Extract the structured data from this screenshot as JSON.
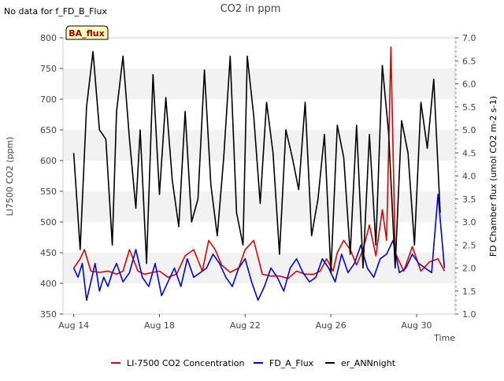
{
  "header": {
    "note": "No data for f_FD_B_Flux"
  },
  "chart_data": {
    "type": "line",
    "title": "CO2 in ppm",
    "xlabel": "Time",
    "ylabel": "LI7500 CO2 (ppm)",
    "y2label": "FD Chamber flux (umol CO2 m-2 s-1)",
    "badge": "BA_flux",
    "xlim_days": [
      13.5,
      31.8
    ],
    "ylim": [
      350,
      800
    ],
    "y2lim": [
      1.0,
      7.0
    ],
    "x_ticks": [
      {
        "day": 14,
        "label": "Aug 14"
      },
      {
        "day": 18,
        "label": "Aug 18"
      },
      {
        "day": 22,
        "label": "Aug 22"
      },
      {
        "day": 26,
        "label": "Aug 26"
      },
      {
        "day": 30,
        "label": "Aug 30"
      }
    ],
    "y_ticks": [
      350,
      400,
      450,
      500,
      550,
      600,
      650,
      700,
      750,
      800
    ],
    "y2_ticks": [
      "1.0",
      "1.5",
      "2.0",
      "2.5",
      "3.0",
      "3.5",
      "4.0",
      "4.5",
      "5.0",
      "5.5",
      "6.0",
      "6.5",
      "7.0"
    ],
    "grid_bands": true,
    "legend_position": "bottom",
    "series": [
      {
        "name": "LI-7500 CO2 Concentration",
        "color": "#dd0000",
        "axis": "left",
        "x": [
          14.0,
          14.3,
          14.5,
          14.8,
          15.2,
          15.6,
          16.0,
          16.3,
          16.6,
          17.0,
          17.3,
          17.7,
          18.0,
          18.4,
          18.8,
          19.2,
          19.6,
          20.0,
          20.3,
          20.6,
          20.9,
          21.3,
          21.7,
          22.0,
          22.4,
          22.8,
          23.2,
          23.6,
          24.0,
          24.4,
          24.8,
          25.2,
          25.5,
          25.8,
          26.1,
          26.3,
          26.6,
          26.9,
          27.2,
          27.5,
          27.8,
          28.1,
          28.4,
          28.6,
          28.8,
          29.0,
          29.4,
          29.8,
          30.2,
          30.6,
          31.0,
          31.3
        ],
        "y": [
          425,
          440,
          455,
          420,
          418,
          420,
          415,
          420,
          455,
          420,
          415,
          418,
          420,
          410,
          415,
          445,
          455,
          420,
          470,
          455,
          430,
          418,
          425,
          455,
          470,
          415,
          412,
          412,
          408,
          420,
          415,
          415,
          420,
          440,
          420,
          450,
          470,
          455,
          430,
          455,
          495,
          445,
          520,
          470,
          785,
          450,
          420,
          460,
          420,
          435,
          440,
          420
        ]
      },
      {
        "name": "FD_A_Flux",
        "color": "#0000dd",
        "axis": "right",
        "x": [
          14.0,
          14.2,
          14.4,
          14.6,
          14.8,
          15.0,
          15.2,
          15.4,
          15.6,
          15.8,
          16.0,
          16.3,
          16.6,
          16.9,
          17.2,
          17.5,
          17.8,
          18.1,
          18.4,
          18.7,
          19.0,
          19.3,
          19.6,
          19.9,
          20.2,
          20.5,
          20.8,
          21.1,
          21.4,
          21.7,
          22.0,
          22.3,
          22.6,
          22.9,
          23.2,
          23.5,
          23.8,
          24.1,
          24.4,
          24.7,
          25.0,
          25.3,
          25.6,
          25.9,
          26.2,
          26.5,
          26.8,
          27.1,
          27.4,
          27.7,
          28.0,
          28.3,
          28.6,
          28.9,
          29.2,
          29.5,
          29.8,
          30.1,
          30.4,
          30.7,
          31.0,
          31.3
        ],
        "y": [
          2.0,
          1.8,
          2.1,
          1.3,
          1.7,
          2.1,
          1.5,
          1.8,
          1.6,
          1.9,
          2.1,
          1.7,
          1.9,
          2.4,
          1.8,
          1.6,
          2.1,
          1.4,
          1.7,
          2.0,
          1.6,
          2.2,
          1.8,
          1.9,
          2.0,
          2.3,
          2.1,
          1.8,
          1.6,
          2.0,
          2.2,
          1.7,
          1.3,
          1.6,
          2.0,
          1.8,
          1.5,
          2.0,
          2.2,
          1.9,
          1.7,
          1.8,
          2.2,
          2.0,
          1.7,
          2.3,
          1.9,
          2.1,
          2.5,
          2.0,
          1.8,
          2.2,
          2.3,
          2.6,
          1.9,
          2.0,
          2.3,
          2.1,
          2.0,
          1.9,
          3.6,
          2.0
        ]
      },
      {
        "name": "er_ANNnight",
        "color": "#000000",
        "axis": "right",
        "x": [
          14.0,
          14.3,
          14.6,
          14.9,
          15.2,
          15.5,
          15.8,
          16.0,
          16.3,
          16.6,
          16.9,
          17.1,
          17.4,
          17.7,
          18.0,
          18.3,
          18.6,
          18.9,
          19.2,
          19.5,
          19.8,
          20.1,
          20.4,
          20.7,
          21.0,
          21.3,
          21.6,
          21.9,
          22.1,
          22.4,
          22.7,
          23.0,
          23.3,
          23.6,
          23.9,
          24.2,
          24.5,
          24.8,
          25.1,
          25.4,
          25.7,
          26.0,
          26.3,
          26.6,
          26.9,
          27.2,
          27.5,
          27.8,
          28.1,
          28.4,
          28.7,
          29.0,
          29.3,
          29.6,
          29.9,
          30.2,
          30.5,
          30.8,
          31.1
        ],
        "y": [
          4.5,
          2.4,
          5.5,
          6.7,
          5.0,
          4.8,
          2.5,
          5.4,
          6.6,
          4.8,
          3.3,
          5.0,
          2.1,
          6.2,
          3.6,
          5.7,
          3.9,
          2.9,
          5.4,
          3.0,
          3.5,
          6.3,
          3.8,
          2.7,
          4.4,
          6.6,
          3.2,
          2.5,
          6.6,
          5.3,
          3.4,
          5.6,
          4.5,
          2.3,
          5.0,
          4.4,
          3.7,
          5.6,
          2.7,
          3.5,
          4.9,
          1.9,
          5.1,
          4.4,
          2.3,
          5.1,
          2.0,
          4.9,
          2.5,
          6.4,
          4.9,
          2.0,
          5.2,
          4.5,
          2.5,
          5.6,
          4.6,
          6.1,
          3.2
        ]
      }
    ]
  }
}
